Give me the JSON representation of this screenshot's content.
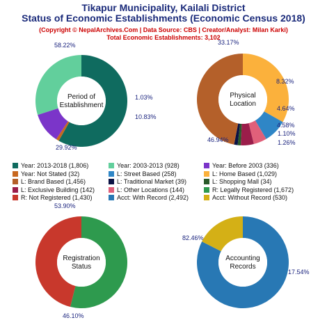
{
  "header": {
    "title_line1": "Tikapur Municipality, Kailali District",
    "title_line2": "Status of Economic Establishments (Economic Census 2018)",
    "copyright": "(Copyright © NepalArchives.Com | Data Source: CBS | Creator/Analyst: Milan Karki)",
    "total": "Total Economic Establishments: 3,102"
  },
  "chart_data": [
    {
      "type": "pie",
      "center_label": [
        "Period of",
        "Establishment"
      ],
      "slices": [
        {
          "label": "Year: 2013-2018",
          "value": 1806,
          "pct_label": "58.22%",
          "color": "#0f6b5f"
        },
        {
          "label": "Year: Not Stated",
          "value": 32,
          "pct_label": "1.03%",
          "color": "#c8681f"
        },
        {
          "label": "Year: Before 2003",
          "value": 336,
          "pct_label": "10.83%",
          "color": "#7b35c9"
        },
        {
          "label": "Year: 2003-2013",
          "value": 928,
          "pct_label": "29.92%",
          "color": "#62cf9c"
        }
      ]
    },
    {
      "type": "pie",
      "center_label": [
        "Physical",
        "Location"
      ],
      "slices": [
        {
          "label": "L: Home Based",
          "value": 1029,
          "pct_label": "33.17%",
          "color": "#fbb13c"
        },
        {
          "label": "L: Street Based",
          "value": 258,
          "pct_label": "8.32%",
          "color": "#2f86c6"
        },
        {
          "label": "L: Other Locations",
          "value": 144,
          "pct_label": "4.64%",
          "color": "#e0607a"
        },
        {
          "label": "L: Exclusive Building",
          "value": 142,
          "pct_label": "4.58%",
          "color": "#9b1d4a"
        },
        {
          "label": "L: Shopping Mall",
          "value": 34,
          "pct_label": "1.10%",
          "color": "#2a5a2a"
        },
        {
          "label": "L: Traditional Market",
          "value": 39,
          "pct_label": "1.26%",
          "color": "#0b1244"
        },
        {
          "label": "L: Brand Based",
          "value": 1456,
          "pct_label": "46.94%",
          "color": "#b4602a"
        }
      ]
    },
    {
      "type": "pie",
      "center_label": [
        "Registration",
        "Status"
      ],
      "slices": [
        {
          "label": "R: Legally Registered",
          "value": 1672,
          "pct_label": "53.90%",
          "color": "#2e9a4e"
        },
        {
          "label": "R: Not Registered",
          "value": 1430,
          "pct_label": "46.10%",
          "color": "#c8382c"
        }
      ]
    },
    {
      "type": "pie",
      "center_label": [
        "Accounting",
        "Records"
      ],
      "slices": [
        {
          "label": "Acct: With Record",
          "value": 2492,
          "pct_label": "82.46%",
          "color": "#2878b4"
        },
        {
          "label": "Acct: Without Record",
          "value": 530,
          "pct_label": "17.54%",
          "color": "#d4b016"
        }
      ]
    }
  ],
  "legend": [
    {
      "text": "Year: 2013-2018 (1,806)",
      "color": "#0f6b5f"
    },
    {
      "text": "Year: 2003-2013 (928)",
      "color": "#62cf9c"
    },
    {
      "text": "Year: Before 2003 (336)",
      "color": "#7b35c9"
    },
    {
      "text": "Year: Not Stated (32)",
      "color": "#c8681f"
    },
    {
      "text": "L: Street Based (258)",
      "color": "#2f86c6"
    },
    {
      "text": "L: Home Based (1,029)",
      "color": "#fbb13c"
    },
    {
      "text": "L: Brand Based (1,456)",
      "color": "#b4602a"
    },
    {
      "text": "L: Traditional Market (39)",
      "color": "#0b1244"
    },
    {
      "text": "L: Shopping Mall (34)",
      "color": "#2a5a2a"
    },
    {
      "text": "L: Exclusive Building (142)",
      "color": "#9b1d4a"
    },
    {
      "text": "L: Other Locations (144)",
      "color": "#e0607a"
    },
    {
      "text": "R: Legally Registered (1,672)",
      "color": "#2e9a4e"
    },
    {
      "text": "R: Not Registered (1,430)",
      "color": "#c8382c"
    },
    {
      "text": "Acct: With Record (2,492)",
      "color": "#2878b4"
    },
    {
      "text": "Acct: Without Record (530)",
      "color": "#d4b016"
    }
  ]
}
